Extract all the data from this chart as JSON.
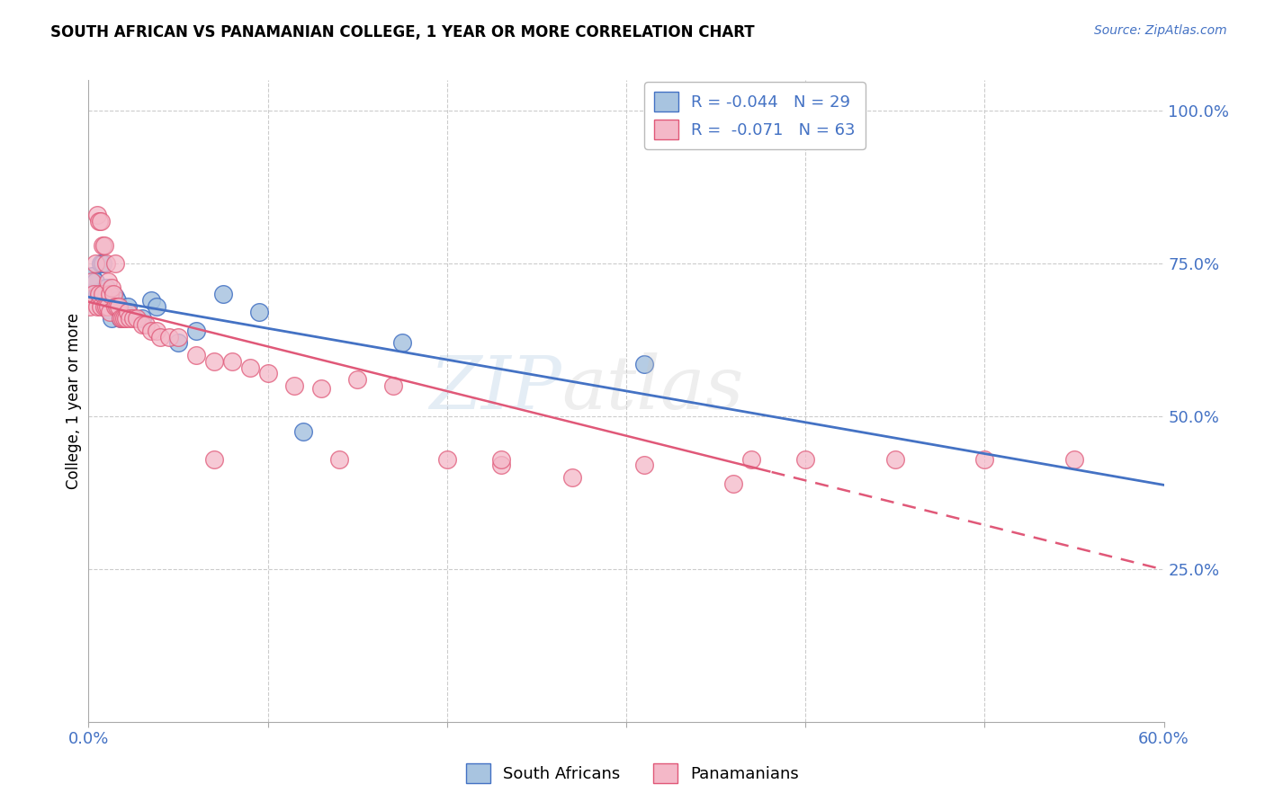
{
  "title": "SOUTH AFRICAN VS PANAMANIAN COLLEGE, 1 YEAR OR MORE CORRELATION CHART",
  "source": "Source: ZipAtlas.com",
  "ylabel": "College, 1 year or more",
  "xlim": [
    0.0,
    0.6
  ],
  "ylim": [
    0.0,
    1.05
  ],
  "grid_color": "#cccccc",
  "background_color": "#ffffff",
  "blue_color": "#a8c4e0",
  "blue_edge_color": "#4472c4",
  "pink_color": "#f4b8c8",
  "pink_edge_color": "#e05878",
  "blue_reg_color": "#4472c4",
  "pink_reg_color": "#e05878",
  "legend_r_blue": "R = -0.044",
  "legend_n_blue": "N = 29",
  "legend_r_pink": "R =  -0.071",
  "legend_n_pink": "N = 63",
  "blue_scatter_x": [
    0.002,
    0.004,
    0.005,
    0.006,
    0.007,
    0.007,
    0.008,
    0.009,
    0.01,
    0.01,
    0.011,
    0.012,
    0.013,
    0.014,
    0.015,
    0.016,
    0.018,
    0.02,
    0.022,
    0.03,
    0.035,
    0.038,
    0.05,
    0.06,
    0.075,
    0.095,
    0.12,
    0.175,
    0.31
  ],
  "blue_scatter_y": [
    0.73,
    0.72,
    0.7,
    0.695,
    0.75,
    0.685,
    0.75,
    0.68,
    0.695,
    0.71,
    0.675,
    0.68,
    0.66,
    0.68,
    0.695,
    0.69,
    0.66,
    0.67,
    0.68,
    0.66,
    0.69,
    0.68,
    0.62,
    0.64,
    0.7,
    0.67,
    0.475,
    0.62,
    0.585
  ],
  "pink_scatter_x": [
    0.001,
    0.002,
    0.003,
    0.004,
    0.005,
    0.005,
    0.006,
    0.006,
    0.007,
    0.007,
    0.008,
    0.008,
    0.009,
    0.009,
    0.01,
    0.01,
    0.011,
    0.011,
    0.012,
    0.012,
    0.013,
    0.014,
    0.015,
    0.015,
    0.016,
    0.017,
    0.018,
    0.019,
    0.02,
    0.021,
    0.022,
    0.023,
    0.025,
    0.027,
    0.03,
    0.032,
    0.035,
    0.038,
    0.04,
    0.045,
    0.05,
    0.06,
    0.07,
    0.08,
    0.09,
    0.1,
    0.115,
    0.13,
    0.15,
    0.17,
    0.2,
    0.23,
    0.27,
    0.31,
    0.36,
    0.4,
    0.45,
    0.5,
    0.55,
    0.07,
    0.14,
    0.23,
    0.37
  ],
  "pink_scatter_y": [
    0.68,
    0.72,
    0.7,
    0.75,
    0.83,
    0.68,
    0.82,
    0.7,
    0.82,
    0.68,
    0.78,
    0.7,
    0.78,
    0.68,
    0.75,
    0.68,
    0.72,
    0.68,
    0.7,
    0.67,
    0.71,
    0.7,
    0.75,
    0.68,
    0.68,
    0.68,
    0.66,
    0.66,
    0.66,
    0.66,
    0.67,
    0.66,
    0.66,
    0.66,
    0.65,
    0.65,
    0.64,
    0.64,
    0.63,
    0.63,
    0.63,
    0.6,
    0.59,
    0.59,
    0.58,
    0.57,
    0.55,
    0.545,
    0.56,
    0.55,
    0.43,
    0.42,
    0.4,
    0.42,
    0.39,
    0.43,
    0.43,
    0.43,
    0.43,
    0.43,
    0.43,
    0.43,
    0.43
  ]
}
